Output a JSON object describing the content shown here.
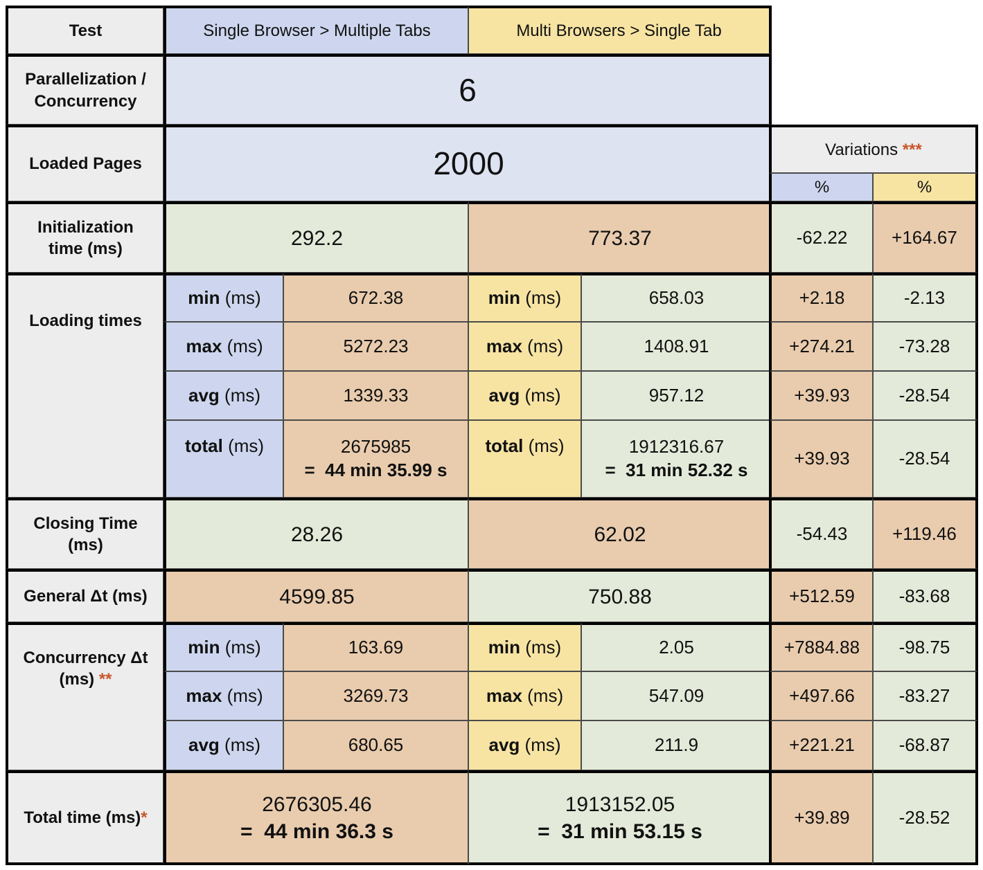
{
  "headers": {
    "test": "Test",
    "single_browser": "Single Browser > Multiple Tabs",
    "multi_browsers": "Multi Browsers > Single Tab",
    "variations": "Variations",
    "variations_mark": "***",
    "pct": "%"
  },
  "rows": {
    "parallelization": {
      "label_line1": "Parallelization /",
      "label_line2": "Concurrency",
      "value": "6"
    },
    "loaded_pages": {
      "label": "Loaded Pages",
      "value": "2000"
    },
    "initialization": {
      "label_line1": "Initialization",
      "label_line2": "time (ms)",
      "single": "292.2",
      "multi": "773.37",
      "var_single": "-62.22",
      "var_multi": "+164.67"
    },
    "loading_times": {
      "label": "Loading times",
      "unit": "(ms)",
      "items": [
        {
          "metric": "min",
          "single": "672.38",
          "multi": "658.03",
          "var_single": "+2.18",
          "var_multi": "-2.13"
        },
        {
          "metric": "max",
          "single": "5272.23",
          "multi": "1408.91",
          "var_single": "+274.21",
          "var_multi": "-73.28"
        },
        {
          "metric": "avg",
          "single": "1339.33",
          "multi": "957.12",
          "var_single": "+39.93",
          "var_multi": "-28.54"
        }
      ],
      "total": {
        "metric": "total",
        "single": "2675985",
        "single_time": "=  44 min 35.99 s",
        "multi": "1912316.67",
        "multi_time": "=  31 min 52.32 s",
        "var_single": "+39.93",
        "var_multi": "-28.54"
      }
    },
    "closing": {
      "label_line1": "Closing Time",
      "label_line2": "(ms)",
      "single": "28.26",
      "multi": "62.02",
      "var_single": "-54.43",
      "var_multi": "+119.46"
    },
    "general_dt": {
      "label": "General Δt (ms)",
      "single": "4599.85",
      "multi": "750.88",
      "var_single": "+512.59",
      "var_multi": "-83.68"
    },
    "concurrency_dt": {
      "label_line1": "Concurrency Δt",
      "label_line2": "(ms)",
      "label_mark": "**",
      "unit": "(ms)",
      "items": [
        {
          "metric": "min",
          "single": "163.69",
          "multi": "2.05",
          "var_single": "+7884.88",
          "var_multi": "-98.75"
        },
        {
          "metric": "max",
          "single": "3269.73",
          "multi": "547.09",
          "var_single": "+497.66",
          "var_multi": "-83.27"
        },
        {
          "metric": "avg",
          "single": "680.65",
          "multi": "211.9",
          "var_single": "+221.21",
          "var_multi": "-68.87"
        }
      ]
    },
    "total_time": {
      "label": "Total time (ms)",
      "label_mark": "*",
      "single": "2676305.46",
      "single_time": "=  44 min 36.3 s",
      "multi": "1913152.05",
      "multi_time": "=  31 min 53.15 s",
      "var_single": "+39.89",
      "var_multi": "-28.52"
    }
  }
}
